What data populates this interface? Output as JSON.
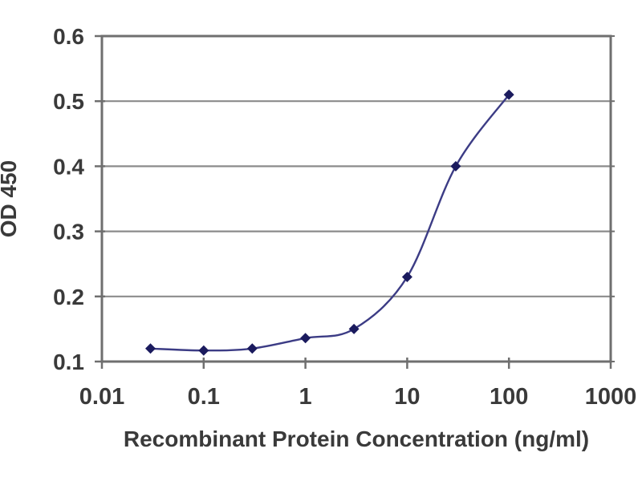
{
  "chart_data": {
    "type": "line",
    "title": "",
    "xlabel": "Recombinant Protein Concentration (ng/ml)",
    "ylabel": "OD 450",
    "x_scale": "log",
    "y_scale": "linear",
    "xlim": [
      0.01,
      1000
    ],
    "ylim": [
      0.1,
      0.6
    ],
    "x_ticks": [
      0.01,
      0.1,
      1,
      10,
      100,
      1000
    ],
    "x_tick_labels": [
      "0.01",
      "0.1",
      "1",
      "10",
      "100",
      "1000"
    ],
    "y_ticks": [
      0.1,
      0.2,
      0.3,
      0.4,
      0.5,
      0.6
    ],
    "y_tick_labels": [
      "0.1",
      "0.2",
      "0.3",
      "0.4",
      "0.5",
      "0.6"
    ],
    "grid": "horizontal",
    "legend": "none",
    "series": [
      {
        "name": "OD 450",
        "marker": "diamond",
        "x": [
          0.03,
          0.1,
          0.3,
          1,
          3,
          10,
          30,
          100
        ],
        "y": [
          0.12,
          0.117,
          0.12,
          0.136,
          0.15,
          0.23,
          0.4,
          0.51
        ]
      }
    ],
    "colors": {
      "background": "#ffffff",
      "gridline": "#8b8b8b",
      "axis_frame": "#6f6f6f",
      "tick": "#6f6f6f",
      "text": "#3a3a3a",
      "series_line": "#3c3c85",
      "series_marker": "#1b1b5e"
    }
  }
}
